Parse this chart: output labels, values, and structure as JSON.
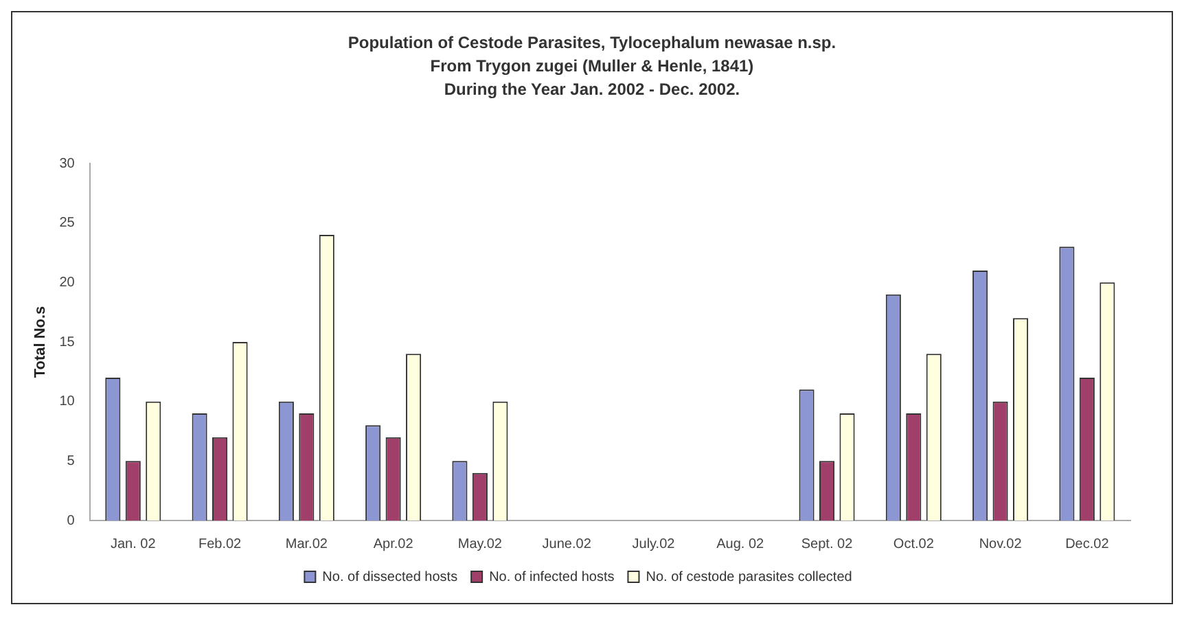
{
  "chart_data": {
    "type": "bar",
    "title": "Population of Cestode Parasites, Tylocephalum newasae n.sp.\nFrom Trygon zugei (Muller & Henle, 1841)\nDuring the Year Jan. 2002 - Dec. 2002.",
    "ylabel": "Total No.s",
    "categories": [
      "Jan. 02",
      "Feb.02",
      "Mar.02",
      "Apr.02",
      "May.02",
      "June.02",
      "July.02",
      "Aug. 02",
      "Sept. 02",
      "Oct.02",
      "Nov.02",
      "Dec.02"
    ],
    "series": [
      {
        "name": "No. of dissected hosts",
        "color": "#8c96d2",
        "values": [
          12,
          9,
          10,
          8,
          5,
          null,
          null,
          null,
          11,
          19,
          21,
          23
        ]
      },
      {
        "name": "No. of infected hosts",
        "color": "#a0406a",
        "values": [
          5,
          7,
          9,
          7,
          4,
          null,
          null,
          null,
          5,
          9,
          10,
          12
        ]
      },
      {
        "name": "No. of cestode parasites collected",
        "color": "#ffffe0",
        "values": [
          10,
          15,
          24,
          14,
          10,
          null,
          null,
          null,
          9,
          14,
          17,
          20
        ]
      }
    ],
    "ylim": [
      0,
      30
    ],
    "yticks": [
      0,
      5,
      10,
      15,
      20,
      25,
      30
    ],
    "grid": false,
    "legend": "bottom"
  }
}
